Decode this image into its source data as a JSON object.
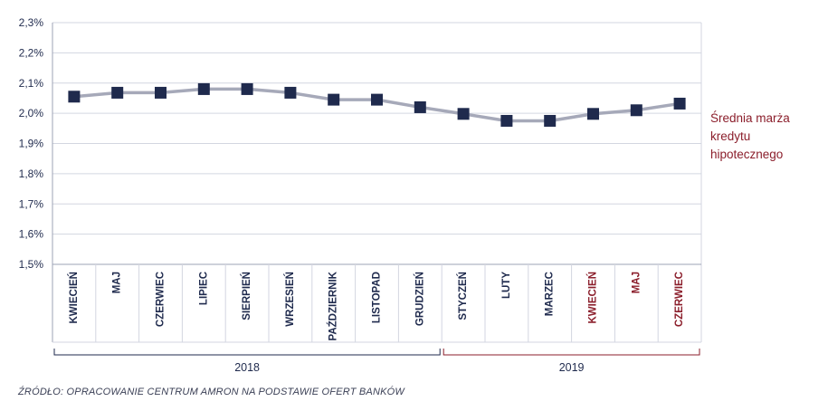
{
  "chart_data": {
    "type": "line",
    "categories": [
      "KWIECIEŃ",
      "MAJ",
      "CZERWIEC",
      "LIPIEC",
      "SIERPIEŃ",
      "WRZESIEŃ",
      "PAŹDZIERNIK",
      "LISTOPAD",
      "GRUDZIEŃ",
      "STYCZEŃ",
      "LUTY",
      "MARZEC",
      "KWIECIEŃ",
      "MAJ",
      "CZERWIEC"
    ],
    "category_colors": [
      "#1f2a4d",
      "#1f2a4d",
      "#1f2a4d",
      "#1f2a4d",
      "#1f2a4d",
      "#1f2a4d",
      "#1f2a4d",
      "#1f2a4d",
      "#1f2a4d",
      "#1f2a4d",
      "#1f2a4d",
      "#1f2a4d",
      "#8b1e2b",
      "#8b1e2b",
      "#8b1e2b"
    ],
    "series": [
      {
        "name": "Średnia marża kredytu hipotecznego",
        "name_lines": [
          "Średnia marża",
          "kredytu",
          "hipotecznego"
        ],
        "values": [
          2.055,
          2.068,
          2.068,
          2.08,
          2.08,
          2.068,
          2.045,
          2.045,
          2.02,
          1.998,
          1.975,
          1.975,
          1.998,
          2.01,
          2.032
        ],
        "line_color": "#a6a9b9",
        "marker_color": "#1f2a4d"
      }
    ],
    "ylim": [
      1.5,
      2.3
    ],
    "yticks": [
      1.5,
      1.6,
      1.7,
      1.8,
      1.9,
      2.0,
      2.1,
      2.2,
      2.3
    ],
    "ytick_labels": [
      "1,5%",
      "1,6%",
      "1,7%",
      "1,8%",
      "1,9%",
      "2,0%",
      "2,1%",
      "2,2%",
      "2,3%"
    ],
    "years": [
      {
        "label": "2018",
        "first": 0,
        "last": 8,
        "color": "#1f2a4d"
      },
      {
        "label": "2019",
        "first": 9,
        "last": 14,
        "color": "#8b1e2b"
      }
    ],
    "grid": true,
    "legend": "right"
  },
  "source_text": "ŹRÓDŁO: OPRACOWANIE CENTRUM AMRON NA PODSTAWIE OFERT BANKÓW"
}
